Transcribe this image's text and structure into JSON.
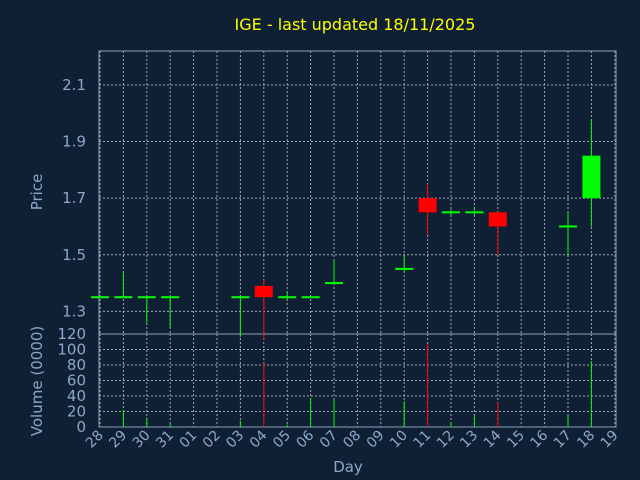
{
  "chart_data": {
    "type": "candlestick",
    "title": "IGE - last updated 18/11/2025",
    "xlabel": "Day",
    "price_ylabel": "Price",
    "volume_ylabel": "Volume (0000)",
    "price_ylim": [
      1.22,
      2.22
    ],
    "price_ticks": [
      "1.3",
      "1.5",
      "1.7",
      "1.9",
      "2.1"
    ],
    "volume_ylim": [
      0,
      120
    ],
    "volume_ticks": [
      "0",
      "20",
      "40",
      "60",
      "80",
      "100",
      "120"
    ],
    "x_ticks": [
      "28",
      "29",
      "30",
      "31",
      "01",
      "02",
      "03",
      "04",
      "05",
      "06",
      "07",
      "08",
      "09",
      "10",
      "11",
      "12",
      "13",
      "14",
      "15",
      "16",
      "17",
      "18",
      "19"
    ],
    "grid": true,
    "colors": {
      "background": "#0f2035",
      "plot_border": "#8aa0bc",
      "grid": "#a0a8b0",
      "title": "#ffff00",
      "label": "#8aa8c8",
      "up": "#00ff00",
      "down": "#ff0000"
    },
    "candles": [
      {
        "day": "28",
        "open": 1.35,
        "high": 1.35,
        "low": 1.35,
        "close": 1.35,
        "volume": 0
      },
      {
        "day": "29",
        "open": 1.35,
        "high": 1.44,
        "low": 1.35,
        "close": 1.35,
        "volume": 22
      },
      {
        "day": "30",
        "open": 1.35,
        "high": 1.35,
        "low": 1.26,
        "close": 1.35,
        "volume": 12
      },
      {
        "day": "31",
        "open": 1.35,
        "high": 1.35,
        "low": 1.24,
        "close": 1.35,
        "volume": 5
      },
      {
        "day": "03",
        "open": 1.35,
        "high": 1.35,
        "low": 1.21,
        "close": 1.35,
        "volume": 8
      },
      {
        "day": "04",
        "open": 1.39,
        "high": 1.41,
        "low": 1.2,
        "close": 1.35,
        "volume": 83
      },
      {
        "day": "05",
        "open": 1.35,
        "high": 1.37,
        "low": 1.34,
        "close": 1.35,
        "volume": 3
      },
      {
        "day": "06",
        "open": 1.35,
        "high": 1.35,
        "low": 1.35,
        "close": 1.35,
        "volume": 37
      },
      {
        "day": "07",
        "open": 1.4,
        "high": 1.48,
        "low": 1.4,
        "close": 1.4,
        "volume": 36
      },
      {
        "day": "10",
        "open": 1.45,
        "high": 1.5,
        "low": 1.44,
        "close": 1.45,
        "volume": 33
      },
      {
        "day": "11",
        "open": 1.7,
        "high": 1.75,
        "low": 1.57,
        "close": 1.65,
        "volume": 107
      },
      {
        "day": "12",
        "open": 1.65,
        "high": 1.66,
        "low": 1.64,
        "close": 1.65,
        "volume": 6
      },
      {
        "day": "13",
        "open": 1.65,
        "high": 1.67,
        "low": 1.64,
        "close": 1.65,
        "volume": 14
      },
      {
        "day": "14",
        "open": 1.65,
        "high": 1.65,
        "low": 1.5,
        "close": 1.6,
        "volume": 32
      },
      {
        "day": "17",
        "open": 1.6,
        "high": 1.65,
        "low": 1.5,
        "close": 1.6,
        "volume": 16
      },
      {
        "day": "18",
        "open": 1.7,
        "high": 1.98,
        "low": 1.6,
        "close": 1.85,
        "volume": 85
      }
    ]
  }
}
